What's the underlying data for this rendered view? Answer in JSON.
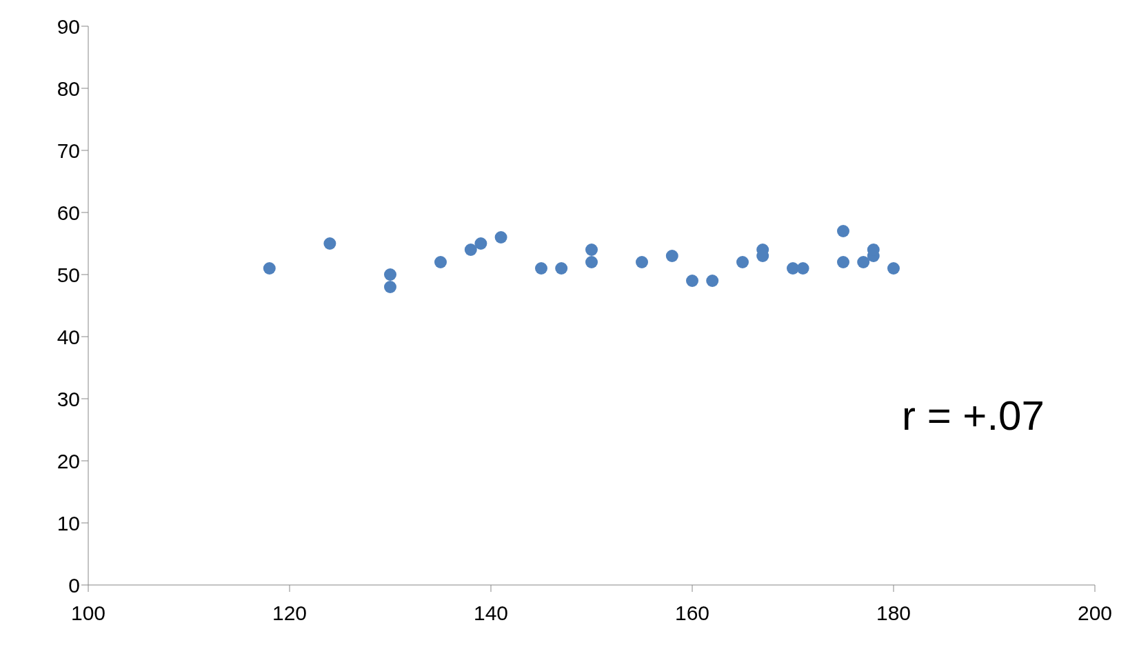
{
  "chart_data": {
    "type": "scatter",
    "x": [
      118,
      124,
      130,
      130,
      135,
      138,
      139,
      141,
      145,
      147,
      150,
      150,
      155,
      158,
      160,
      162,
      165,
      167,
      167,
      170,
      171,
      175,
      175,
      177,
      178,
      178,
      180
    ],
    "series": [
      {
        "color": "#4f81bd",
        "values": [
          51,
          55,
          50,
          48,
          52,
          54,
          55,
          56,
          51,
          51,
          54,
          52,
          52,
          53,
          49,
          49,
          52,
          54,
          53,
          51,
          51,
          57,
          52,
          52,
          53,
          54,
          51
        ]
      }
    ],
    "xlim": [
      100,
      200
    ],
    "xticks": [
      100,
      120,
      140,
      160,
      180,
      200
    ],
    "ylim": [
      0,
      90
    ],
    "yticks": [
      0,
      10,
      20,
      30,
      40,
      50,
      60,
      70,
      80,
      90
    ],
    "grid": false,
    "legend": false,
    "marker": "circle",
    "annotations": [
      "r = +.07"
    ]
  }
}
